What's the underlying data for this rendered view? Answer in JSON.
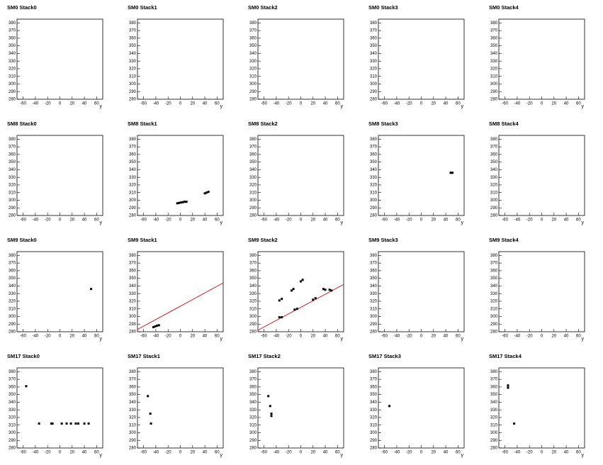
{
  "chart_data": [
    {
      "type": "scatter",
      "title": "SM0 Stack0",
      "xlabel": "y",
      "xlim": [
        -70,
        70
      ],
      "ylim": [
        280,
        385
      ],
      "xticks": [
        -60,
        -40,
        -20,
        0,
        20,
        40,
        60
      ],
      "yticks": [
        280,
        290,
        300,
        310,
        320,
        330,
        340,
        350,
        360,
        370,
        380
      ]
    },
    {
      "type": "scatter",
      "title": "SM0 Stack1",
      "xlabel": "y",
      "xlim": [
        -70,
        70
      ],
      "ylim": [
        280,
        385
      ],
      "xticks": [
        -60,
        -40,
        -20,
        0,
        20,
        40,
        60
      ],
      "yticks": [
        280,
        290,
        300,
        310,
        320,
        330,
        340,
        350,
        360,
        370,
        380
      ]
    },
    {
      "type": "scatter",
      "title": "SM0 Stack2",
      "xlabel": "y",
      "xlim": [
        -70,
        70
      ],
      "ylim": [
        280,
        385
      ],
      "xticks": [
        -60,
        -40,
        -20,
        0,
        20,
        40,
        60
      ],
      "yticks": [
        280,
        290,
        300,
        310,
        320,
        330,
        340,
        350,
        360,
        370,
        380
      ]
    },
    {
      "type": "scatter",
      "title": "SM0 Stack3",
      "xlabel": "y",
      "xlim": [
        -70,
        70
      ],
      "ylim": [
        280,
        385
      ],
      "xticks": [
        -60,
        -40,
        -20,
        0,
        20,
        40,
        60
      ],
      "yticks": [
        280,
        290,
        300,
        310,
        320,
        330,
        340,
        350,
        360,
        370,
        380
      ]
    },
    {
      "type": "scatter",
      "title": "SM0 Stack4",
      "xlabel": "y",
      "xlim": [
        -70,
        70
      ],
      "ylim": [
        280,
        385
      ],
      "xticks": [
        -60,
        -40,
        -20,
        0,
        20,
        40,
        60
      ],
      "yticks": [
        280,
        290,
        300,
        310,
        320,
        330,
        340,
        350,
        360,
        370,
        380
      ]
    },
    {
      "type": "scatter",
      "title": "SM8 Stack0",
      "xlabel": "y",
      "xlim": [
        -70,
        70
      ],
      "ylim": [
        280,
        385
      ],
      "xticks": [
        -60,
        -40,
        -20,
        0,
        20,
        40,
        60
      ],
      "yticks": [
        280,
        290,
        300,
        310,
        320,
        330,
        340,
        350,
        360,
        370,
        380
      ]
    },
    {
      "type": "scatter",
      "title": "SM8 Stack1",
      "xlabel": "y",
      "xlim": [
        -70,
        70
      ],
      "ylim": [
        280,
        385
      ],
      "xticks": [
        -60,
        -40,
        -20,
        0,
        20,
        40,
        60
      ],
      "yticks": [
        280,
        290,
        300,
        310,
        320,
        330,
        340,
        350,
        360,
        370,
        380
      ],
      "series": [
        {
          "color": "#000000",
          "x": [
            -5,
            -2,
            1,
            4,
            7,
            10,
            40,
            43,
            46
          ],
          "y": [
            296,
            296.5,
            297,
            297.5,
            298,
            298,
            309,
            310,
            311
          ]
        }
      ]
    },
    {
      "type": "scatter",
      "title": "SM8 Stack2",
      "xlabel": "y",
      "xlim": [
        -70,
        70
      ],
      "ylim": [
        280,
        385
      ],
      "xticks": [
        -60,
        -40,
        -20,
        0,
        20,
        40,
        60
      ],
      "yticks": [
        280,
        290,
        300,
        310,
        320,
        330,
        340,
        350,
        360,
        370,
        380
      ]
    },
    {
      "type": "scatter",
      "title": "SM8 Stack3",
      "xlabel": "y",
      "xlim": [
        -70,
        70
      ],
      "ylim": [
        280,
        385
      ],
      "xticks": [
        -60,
        -40,
        -20,
        0,
        20,
        40,
        60
      ],
      "yticks": [
        280,
        290,
        300,
        310,
        320,
        330,
        340,
        350,
        360,
        370,
        380
      ],
      "series": [
        {
          "color": "#000000",
          "x": [
            48,
            51
          ],
          "y": [
            336,
            336
          ]
        }
      ]
    },
    {
      "type": "scatter",
      "title": "SM8 Stack4",
      "xlabel": "y",
      "xlim": [
        -70,
        70
      ],
      "ylim": [
        280,
        385
      ],
      "xticks": [
        -60,
        -40,
        -20,
        0,
        20,
        40,
        60
      ],
      "yticks": [
        280,
        290,
        300,
        310,
        320,
        330,
        340,
        350,
        360,
        370,
        380
      ]
    },
    {
      "type": "scatter",
      "title": "SM9 Stack0",
      "xlabel": "y",
      "xlim": [
        -70,
        70
      ],
      "ylim": [
        280,
        385
      ],
      "xticks": [
        -60,
        -40,
        -20,
        0,
        20,
        40,
        60
      ],
      "yticks": [
        280,
        290,
        300,
        310,
        320,
        330,
        340,
        350,
        360,
        370,
        380
      ],
      "series": [
        {
          "color": "#000000",
          "x": [
            51
          ],
          "y": [
            336
          ]
        }
      ]
    },
    {
      "type": "scatter",
      "title": "SM9 Stack1",
      "xlabel": "y",
      "xlim": [
        -70,
        70
      ],
      "ylim": [
        280,
        385
      ],
      "xticks": [
        -60,
        -40,
        -20,
        0,
        20,
        40,
        60
      ],
      "yticks": [
        280,
        290,
        300,
        310,
        320,
        330,
        340,
        350,
        360,
        370,
        380
      ],
      "series": [
        {
          "color": "#000000",
          "x": [
            -44,
            -41,
            -38,
            -35
          ],
          "y": [
            286,
            287,
            288,
            288.5
          ]
        }
      ],
      "lines": [
        {
          "color": "#e00000",
          "x": [
            -70,
            70
          ],
          "y": [
            283,
            344
          ]
        }
      ]
    },
    {
      "type": "scatter",
      "title": "SM9 Stack2",
      "xlabel": "y",
      "xlim": [
        -70,
        70
      ],
      "ylim": [
        280,
        385
      ],
      "xticks": [
        -60,
        -40,
        -20,
        0,
        20,
        40,
        60
      ],
      "yticks": [
        280,
        290,
        300,
        310,
        320,
        330,
        340,
        350,
        360,
        370,
        380
      ],
      "series": [
        {
          "color": "#000000",
          "x": [
            -35,
            -31,
            -35,
            -31,
            -15,
            -12,
            0,
            3,
            -10,
            -6,
            20,
            24,
            37,
            40,
            47,
            50
          ],
          "y": [
            299,
            299,
            321,
            323,
            334,
            336,
            346,
            348,
            309,
            310,
            322,
            324,
            336,
            335,
            335,
            334
          ]
        }
      ],
      "lines": [
        {
          "color": "#e00000",
          "x": [
            -70,
            70
          ],
          "y": [
            282,
            342
          ]
        }
      ]
    },
    {
      "type": "scatter",
      "title": "SM9 Stack3",
      "xlabel": "y",
      "xlim": [
        -70,
        70
      ],
      "ylim": [
        280,
        385
      ],
      "xticks": [
        -60,
        -40,
        -20,
        0,
        20,
        40,
        60
      ],
      "yticks": [
        280,
        290,
        300,
        310,
        320,
        330,
        340,
        350,
        360,
        370,
        380
      ]
    },
    {
      "type": "scatter",
      "title": "SM9 Stack4",
      "xlabel": "y",
      "xlim": [
        -70,
        70
      ],
      "ylim": [
        280,
        385
      ],
      "xticks": [
        -60,
        -40,
        -20,
        0,
        20,
        40,
        60
      ],
      "yticks": [
        280,
        290,
        300,
        310,
        320,
        330,
        340,
        350,
        360,
        370,
        380
      ]
    },
    {
      "type": "scatter",
      "title": "SM17 Stack0",
      "xlabel": "y",
      "xlim": [
        -70,
        70
      ],
      "ylim": [
        280,
        385
      ],
      "xticks": [
        -60,
        -40,
        -20,
        0,
        20,
        40,
        60
      ],
      "yticks": [
        280,
        290,
        300,
        310,
        320,
        330,
        340,
        350,
        360,
        370,
        380
      ],
      "series": [
        {
          "color": "#000000",
          "x": [
            -55,
            -34,
            -14,
            -12,
            3,
            11,
            18,
            26,
            30,
            40,
            47
          ],
          "y": [
            361,
            312,
            312,
            312,
            312,
            312,
            312,
            312,
            312,
            312,
            312
          ]
        }
      ]
    },
    {
      "type": "scatter",
      "title": "SM17 Stack1",
      "xlabel": "y",
      "xlim": [
        -70,
        70
      ],
      "ylim": [
        280,
        385
      ],
      "xticks": [
        -60,
        -40,
        -20,
        0,
        20,
        40,
        60
      ],
      "yticks": [
        280,
        290,
        300,
        310,
        320,
        330,
        340,
        350,
        360,
        370,
        380
      ],
      "series": [
        {
          "color": "#000000",
          "x": [
            -53,
            -49,
            -48
          ],
          "y": [
            348,
            325,
            312
          ]
        }
      ]
    },
    {
      "type": "scatter",
      "title": "SM17 Stack2",
      "xlabel": "y",
      "xlim": [
        -70,
        70
      ],
      "ylim": [
        280,
        385
      ],
      "xticks": [
        -60,
        -40,
        -20,
        0,
        20,
        40,
        60
      ],
      "yticks": [
        280,
        290,
        300,
        310,
        320,
        330,
        340,
        350,
        360,
        370,
        380
      ],
      "series": [
        {
          "color": "#000000",
          "x": [
            -53,
            -50,
            -48,
            -48
          ],
          "y": [
            348,
            335,
            325,
            322
          ]
        }
      ]
    },
    {
      "type": "scatter",
      "title": "SM17 Stack3",
      "xlabel": "y",
      "xlim": [
        -70,
        70
      ],
      "ylim": [
        280,
        385
      ],
      "xticks": [
        -60,
        -40,
        -20,
        0,
        20,
        40,
        60
      ],
      "yticks": [
        280,
        290,
        300,
        310,
        320,
        330,
        340,
        350,
        360,
        370,
        380
      ],
      "series": [
        {
          "color": "#000000",
          "x": [
            -52
          ],
          "y": [
            335
          ]
        }
      ]
    },
    {
      "type": "scatter",
      "title": "SM17 Stack4",
      "xlabel": "y",
      "xlim": [
        -70,
        70
      ],
      "ylim": [
        280,
        385
      ],
      "xticks": [
        -60,
        -40,
        -20,
        0,
        20,
        40,
        60
      ],
      "yticks": [
        280,
        290,
        300,
        310,
        320,
        330,
        340,
        350,
        360,
        370,
        380
      ],
      "series": [
        {
          "color": "#000000",
          "x": [
            -55,
            -55,
            -45
          ],
          "y": [
            362,
            359,
            312
          ]
        }
      ]
    }
  ]
}
